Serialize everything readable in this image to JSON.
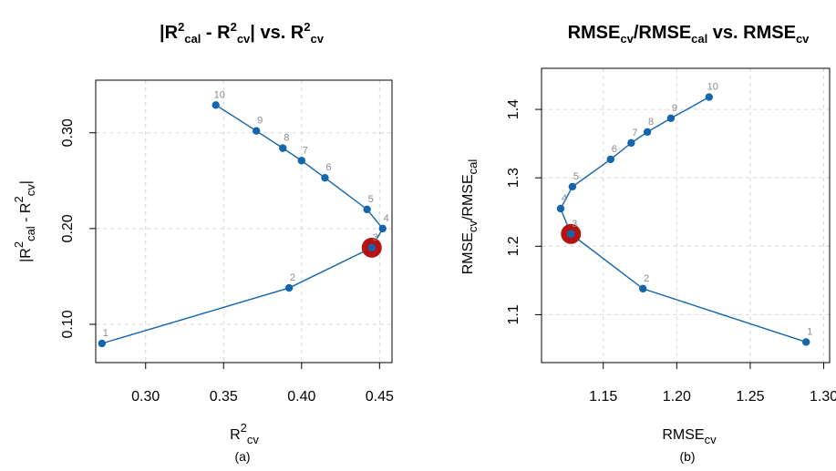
{
  "colors": {
    "series": "#1565ad",
    "highlight": "#b31414",
    "point_label": "#8a8a8a",
    "grid": "#d6d6d6"
  },
  "chart_data": [
    {
      "type": "scatter",
      "title": "|R²cal - R²cv| vs. R²cv",
      "title_parts": [
        "|R",
        "2",
        "cal",
        " - R",
        "2",
        "cv",
        "| vs. R",
        "2",
        "cv"
      ],
      "xlabel_parts": [
        "R",
        "2",
        "cv"
      ],
      "ylabel_parts": [
        "|R",
        "2",
        "cal",
        " - R",
        "2",
        "cv",
        "|"
      ],
      "panel_label": "(a)",
      "xlim": [
        0.268,
        0.458
      ],
      "ylim": [
        0.06,
        0.355
      ],
      "xticks": [
        0.3,
        0.35,
        0.4,
        0.45
      ],
      "xtick_labels": [
        "0.30",
        "0.35",
        "0.40",
        "0.45"
      ],
      "yticks": [
        0.1,
        0.2,
        0.3
      ],
      "ytick_labels": [
        "0.10",
        "0.20",
        "0.30"
      ],
      "grid": true,
      "connected": true,
      "points": [
        {
          "label": "1",
          "x": 0.272,
          "y": 0.08
        },
        {
          "label": "2",
          "x": 0.392,
          "y": 0.138
        },
        {
          "label": "3",
          "x": 0.445,
          "y": 0.18
        },
        {
          "label": "4",
          "x": 0.452,
          "y": 0.2
        },
        {
          "label": "5",
          "x": 0.442,
          "y": 0.22
        },
        {
          "label": "6",
          "x": 0.415,
          "y": 0.253
        },
        {
          "label": "7",
          "x": 0.4,
          "y": 0.271
        },
        {
          "label": "8",
          "x": 0.388,
          "y": 0.284
        },
        {
          "label": "9",
          "x": 0.371,
          "y": 0.302
        },
        {
          "label": "10",
          "x": 0.345,
          "y": 0.329
        }
      ],
      "highlight_label": "3"
    },
    {
      "type": "scatter",
      "title": "RMSEcv/RMSEcal vs. RMSEcv",
      "title_parts": [
        "RMSE",
        "cv",
        "/RMSE",
        "cal",
        " vs. RMSE",
        "cv"
      ],
      "xlabel_parts": [
        "RMSE",
        "cv"
      ],
      "ylabel_parts": [
        "RMSE",
        "cv",
        "/RMSE",
        "cal"
      ],
      "panel_label": "(b)",
      "xlim": [
        1.108,
        1.304
      ],
      "ylim": [
        1.03,
        1.46
      ],
      "xticks": [
        1.15,
        1.2,
        1.25,
        1.3
      ],
      "xtick_labels": [
        "1.15",
        "1.20",
        "1.25",
        "1.30"
      ],
      "yticks": [
        1.1,
        1.2,
        1.3,
        1.4
      ],
      "ytick_labels": [
        "1.1",
        "1.2",
        "1.3",
        "1.4"
      ],
      "grid": true,
      "connected": true,
      "points": [
        {
          "label": "1",
          "x": 1.288,
          "y": 1.06
        },
        {
          "label": "2",
          "x": 1.177,
          "y": 1.138
        },
        {
          "label": "3",
          "x": 1.128,
          "y": 1.218
        },
        {
          "label": "4",
          "x": 1.121,
          "y": 1.255
        },
        {
          "label": "5",
          "x": 1.129,
          "y": 1.287
        },
        {
          "label": "6",
          "x": 1.155,
          "y": 1.327
        },
        {
          "label": "7",
          "x": 1.169,
          "y": 1.351
        },
        {
          "label": "8",
          "x": 1.18,
          "y": 1.367
        },
        {
          "label": "9",
          "x": 1.196,
          "y": 1.387
        },
        {
          "label": "10",
          "x": 1.222,
          "y": 1.418
        }
      ],
      "highlight_label": "3"
    }
  ]
}
